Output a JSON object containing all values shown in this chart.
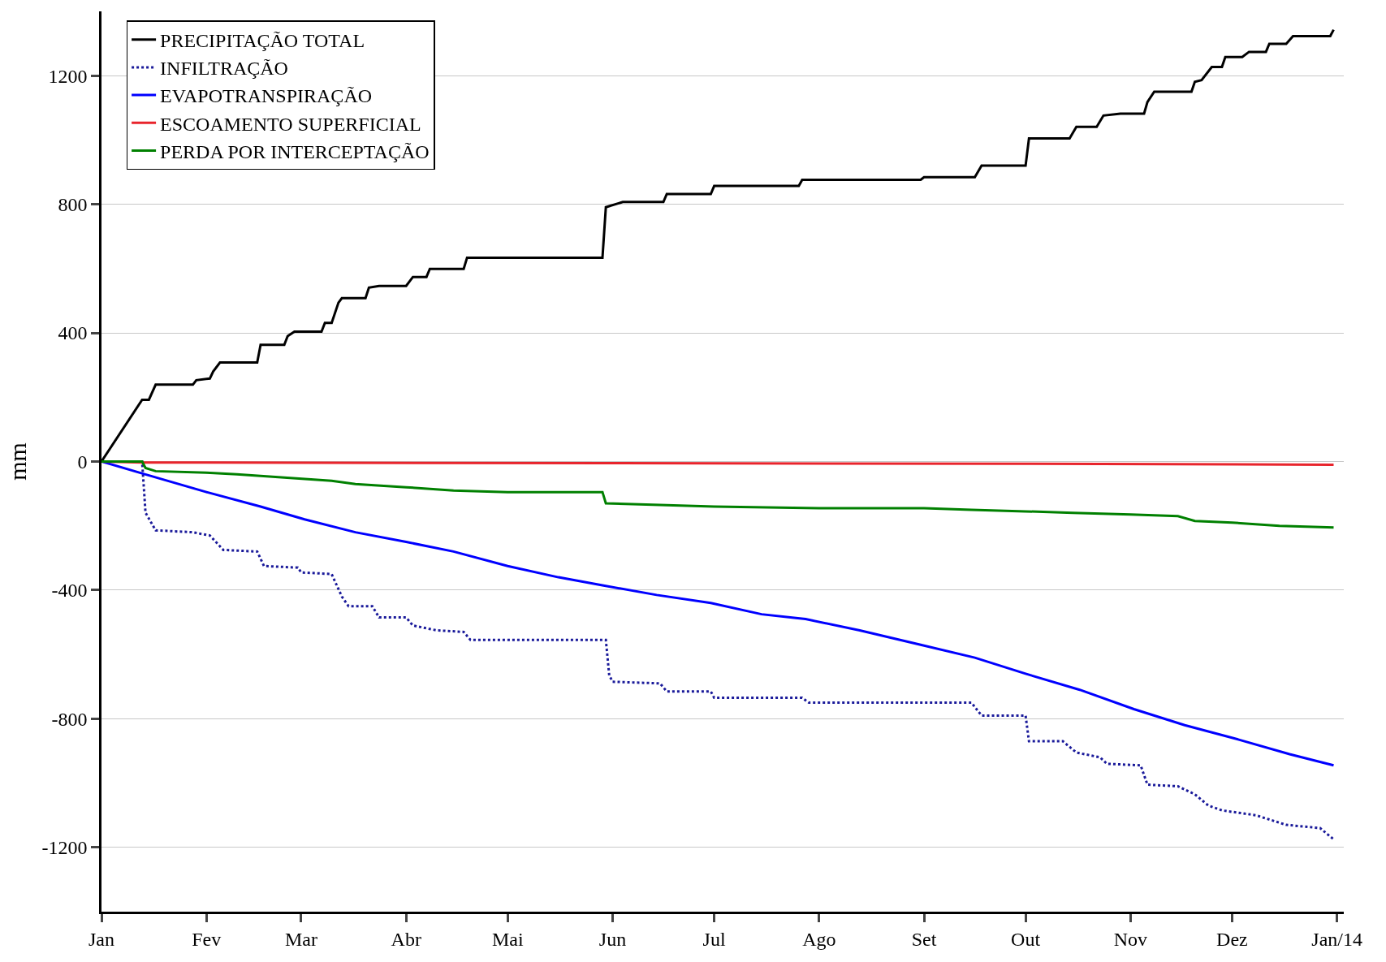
{
  "chart_data": {
    "type": "line",
    "ylabel": "mm",
    "legend": "top left",
    "grid": "y",
    "marker": "none",
    "xlim": [
      "2013-01-01",
      "2014-01-03"
    ],
    "ylim": [
      -1400,
      1400
    ],
    "xticks": [
      {
        "value": "2013-01-01",
        "label": "Jan"
      },
      {
        "value": "2013-02-01",
        "label": "Fev"
      },
      {
        "value": "2013-03-01",
        "label": "Mar"
      },
      {
        "value": "2013-04-01",
        "label": "Abr"
      },
      {
        "value": "2013-05-01",
        "label": "Mai"
      },
      {
        "value": "2013-06-01",
        "label": "Jun"
      },
      {
        "value": "2013-07-01",
        "label": "Jul"
      },
      {
        "value": "2013-08-01",
        "label": "Ago"
      },
      {
        "value": "2013-09-01",
        "label": "Set"
      },
      {
        "value": "2013-10-01",
        "label": "Out"
      },
      {
        "value": "2013-11-01",
        "label": "Nov"
      },
      {
        "value": "2013-12-01",
        "label": "Dez"
      },
      {
        "value": "2014-01-01",
        "label": "Jan/14"
      }
    ],
    "yticks": [
      -1200,
      -800,
      -400,
      0,
      400,
      800,
      1200
    ],
    "series": [
      {
        "name": "PRECIPITAÇÃO TOTAL",
        "color": "#000000",
        "line_style": "solid",
        "x": [
          "2013-01-01",
          "2013-01-13",
          "2013-01-15",
          "2013-01-17",
          "2013-01-28",
          "2013-01-29",
          "2013-02-02",
          "2013-02-03",
          "2013-02-05",
          "2013-02-16",
          "2013-02-17",
          "2013-02-24",
          "2013-02-25",
          "2013-02-27",
          "2013-03-07",
          "2013-03-08",
          "2013-03-10",
          "2013-03-12",
          "2013-03-13",
          "2013-03-20",
          "2013-03-21",
          "2013-03-24",
          "2013-04-01",
          "2013-04-03",
          "2013-04-07",
          "2013-04-08",
          "2013-04-18",
          "2013-04-19",
          "2013-05-29",
          "2013-05-30",
          "2013-06-04",
          "2013-06-16",
          "2013-06-17",
          "2013-06-30",
          "2013-07-01",
          "2013-07-26",
          "2013-07-27",
          "2013-08-31",
          "2013-09-01",
          "2013-09-16",
          "2013-09-18",
          "2013-10-01",
          "2013-10-02",
          "2013-10-14",
          "2013-10-16",
          "2013-10-22",
          "2013-10-24",
          "2013-10-29",
          "2013-11-05",
          "2013-11-06",
          "2013-11-08",
          "2013-11-19",
          "2013-11-20",
          "2013-11-22",
          "2013-11-25",
          "2013-11-28",
          "2013-11-29",
          "2013-12-04",
          "2013-12-06",
          "2013-12-11",
          "2013-12-12",
          "2013-12-17",
          "2013-12-19",
          "2013-12-30",
          "2013-12-31"
        ],
        "values": [
          0,
          192,
          192,
          239,
          239,
          253,
          258,
          280,
          308,
          308,
          363,
          363,
          390,
          404,
          404,
          431,
          431,
          494,
          508,
          508,
          541,
          546,
          546,
          574,
          574,
          599,
          599,
          634,
          634,
          791,
          807,
          807,
          832,
          832,
          857,
          857,
          876,
          876,
          884,
          884,
          920,
          920,
          1005,
          1005,
          1041,
          1041,
          1076,
          1082,
          1082,
          1118,
          1150,
          1150,
          1181,
          1186,
          1227,
          1227,
          1258,
          1258,
          1274,
          1274,
          1299,
          1299,
          1323,
          1323,
          1343
        ]
      },
      {
        "name": "INFILTRAÇÃO",
        "color": "#1a1a9a",
        "line_style": "dotted",
        "x": [
          "2013-01-01",
          "2013-01-13",
          "2013-01-14",
          "2013-01-17",
          "2013-01-28",
          "2013-02-02",
          "2013-02-06",
          "2013-02-16",
          "2013-02-18",
          "2013-02-28",
          "2013-03-01",
          "2013-03-10",
          "2013-03-13",
          "2013-03-15",
          "2013-03-22",
          "2013-03-24",
          "2013-04-01",
          "2013-04-03",
          "2013-04-10",
          "2013-04-18",
          "2013-04-20",
          "2013-05-30",
          "2013-05-31",
          "2013-06-01",
          "2013-06-15",
          "2013-06-17",
          "2013-06-30",
          "2013-07-01",
          "2013-07-27",
          "2013-07-29",
          "2013-09-15",
          "2013-09-18",
          "2013-10-01",
          "2013-10-02",
          "2013-10-12",
          "2013-10-16",
          "2013-10-23",
          "2013-10-25",
          "2013-11-04",
          "2013-11-06",
          "2013-11-15",
          "2013-11-20",
          "2013-11-24",
          "2013-11-28",
          "2013-12-08",
          "2013-12-17",
          "2013-12-27",
          "2013-12-31"
        ],
        "values": [
          0,
          0,
          -159,
          -214,
          -220,
          -230,
          -275,
          -280,
          -325,
          -330,
          -345,
          -350,
          -420,
          -450,
          -450,
          -485,
          -485,
          -510,
          -525,
          -530,
          -555,
          -555,
          -665,
          -685,
          -690,
          -715,
          -715,
          -735,
          -735,
          -750,
          -750,
          -790,
          -790,
          -870,
          -870,
          -905,
          -920,
          -940,
          -945,
          -1005,
          -1010,
          -1035,
          -1070,
          -1085,
          -1100,
          -1130,
          -1140,
          -1175
        ]
      },
      {
        "name": "EVAPOTRANSPIRAÇÃO",
        "color": "#0000ff",
        "line_style": "solid",
        "x": [
          "2013-01-01",
          "2013-01-14",
          "2013-02-01",
          "2013-02-17",
          "2013-03-02",
          "2013-03-17",
          "2013-04-01",
          "2013-04-15",
          "2013-05-01",
          "2013-05-16",
          "2013-05-29",
          "2013-06-14",
          "2013-06-30",
          "2013-07-15",
          "2013-07-28",
          "2013-08-13",
          "2013-08-31",
          "2013-09-16",
          "2013-10-01",
          "2013-10-17",
          "2013-11-02",
          "2013-11-17",
          "2013-12-03",
          "2013-12-18",
          "2013-12-31"
        ],
        "values": [
          0,
          -40,
          -95,
          -140,
          -180,
          -220,
          -250,
          -280,
          -325,
          -360,
          -385,
          -415,
          -440,
          -475,
          -490,
          -525,
          -570,
          -610,
          -660,
          -710,
          -770,
          -820,
          -865,
          -910,
          -945
        ]
      },
      {
        "name": "ESCOAMENTO SUPERFICIAL",
        "color": "#e8242c",
        "line_style": "solid",
        "x": [
          "2013-01-01",
          "2013-01-13",
          "2013-06-01",
          "2013-10-01",
          "2013-12-31"
        ],
        "values": [
          0,
          -3,
          -5,
          -7,
          -10
        ]
      },
      {
        "name": "PERDA POR INTERCEPTAÇÃO",
        "color": "#008000",
        "line_style": "solid",
        "x": [
          "2013-01-01",
          "2013-01-13",
          "2013-01-14",
          "2013-01-17",
          "2013-02-01",
          "2013-02-10",
          "2013-02-24",
          "2013-03-10",
          "2013-03-17",
          "2013-04-01",
          "2013-04-15",
          "2013-05-01",
          "2013-05-29",
          "2013-05-30",
          "2013-06-15",
          "2013-07-01",
          "2013-08-01",
          "2013-09-01",
          "2013-09-15",
          "2013-10-01",
          "2013-10-15",
          "2013-11-01",
          "2013-11-15",
          "2013-11-20",
          "2013-12-01",
          "2013-12-15",
          "2013-12-31"
        ],
        "values": [
          0,
          0,
          -20,
          -30,
          -35,
          -40,
          -50,
          -60,
          -70,
          -80,
          -90,
          -95,
          -95,
          -130,
          -135,
          -140,
          -145,
          -145,
          -150,
          -155,
          -160,
          -165,
          -170,
          -185,
          -190,
          -200,
          -205
        ]
      }
    ]
  }
}
